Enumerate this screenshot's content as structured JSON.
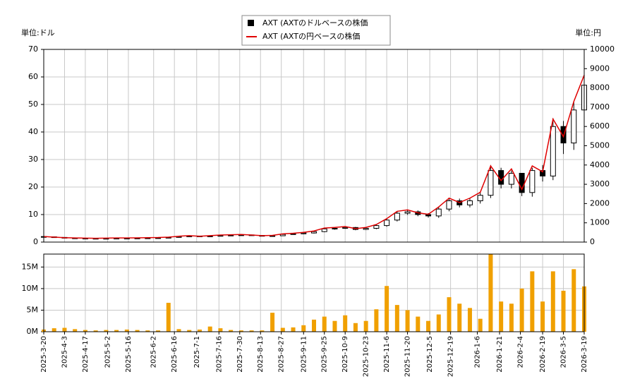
{
  "chart_data": [
    {
      "type": "candlestick",
      "y_label": "単位:ドル",
      "y2_label": "単位:円",
      "x": [
        "2025-3-20",
        "2025-3-27",
        "2025-4-3",
        "2025-4-10",
        "2025-4-17",
        "2025-4-24",
        "2025-5-1",
        "2025-5-8",
        "2025-5-15",
        "2025-5-22",
        "2025-5-29",
        "2025-6-5",
        "2025-6-12",
        "2025-6-19",
        "2025-6-26",
        "2025-7-3",
        "2025-7-10",
        "2025-7-17",
        "2025-7-24",
        "2025-7-31",
        "2025-8-7",
        "2025-8-14",
        "2025-8-21",
        "2025-8-28",
        "2025-9-4",
        "2025-9-11",
        "2025-9-18",
        "2025-9-25",
        "2025-10-2",
        "2025-10-9",
        "2025-10-16",
        "2025-10-23",
        "2025-10-30",
        "2025-11-6",
        "2025-11-13",
        "2025-11-20",
        "2025-11-27",
        "2025-12-4",
        "2025-12-11",
        "2025-12-18",
        "2025-12-25",
        "2026-1-1",
        "2026-1-8",
        "2026-1-15",
        "2026-1-22",
        "2026-1-29",
        "2026-2-5",
        "2026-2-12",
        "2026-2-19",
        "2026-2-26",
        "2026-3-5",
        "2026-3-12",
        "2026-3-19"
      ],
      "series": [
        {
          "name": "AXT (AXTのドルベースの株価",
          "color": "#000000",
          "open": [
            2.0,
            1.9,
            1.7,
            1.5,
            1.4,
            1.35,
            1.3,
            1.35,
            1.4,
            1.4,
            1.45,
            1.5,
            1.55,
            1.7,
            2.0,
            2.2,
            2.0,
            2.2,
            2.4,
            2.5,
            2.6,
            2.4,
            2.2,
            2.3,
            2.8,
            3.0,
            3.3,
            3.8,
            4.8,
            5.0,
            5.3,
            4.6,
            5.0,
            6.0,
            8.0,
            10.5,
            11,
            10,
            9.5,
            12,
            15,
            13.5,
            15,
            17,
            26,
            21,
            25,
            18,
            26,
            24,
            42,
            36,
            48
          ],
          "high": [
            2.1,
            2.0,
            1.8,
            1.6,
            1.5,
            1.45,
            1.45,
            1.5,
            1.5,
            1.55,
            1.6,
            1.65,
            1.8,
            2.1,
            2.4,
            2.3,
            2.3,
            2.6,
            2.6,
            2.8,
            2.7,
            2.5,
            2.4,
            3.0,
            3.2,
            3.5,
            4.0,
            5.1,
            5.3,
            5.6,
            5.5,
            5.3,
            6.4,
            8.6,
            11.2,
            11.8,
            11.5,
            10.5,
            12.8,
            16,
            15.8,
            16,
            18,
            28,
            27,
            26,
            25,
            27,
            28,
            45,
            44,
            51,
            63
          ],
          "low": [
            1.8,
            1.6,
            1.4,
            1.3,
            1.25,
            1.2,
            1.25,
            1.3,
            1.3,
            1.35,
            1.4,
            1.45,
            1.5,
            1.6,
            1.9,
            1.9,
            1.9,
            2.1,
            2.3,
            2.4,
            2.3,
            2.1,
            2.1,
            2.2,
            2.7,
            2.9,
            3.1,
            3.6,
            4.5,
            4.8,
            4.3,
            4.4,
            4.7,
            5.6,
            7.5,
            9.9,
            9.4,
            8.9,
            8.8,
            11.2,
            12.6,
            12.6,
            14,
            16,
            19.5,
            19.5,
            16.7,
            16.5,
            22,
            22.5,
            32,
            33.5,
            45
          ],
          "close": [
            1.9,
            1.7,
            1.5,
            1.4,
            1.35,
            1.3,
            1.35,
            1.4,
            1.4,
            1.45,
            1.5,
            1.55,
            1.7,
            2.0,
            2.2,
            2.0,
            2.2,
            2.4,
            2.5,
            2.6,
            2.4,
            2.2,
            2.3,
            2.8,
            3.0,
            3.3,
            3.8,
            4.8,
            5.0,
            5.3,
            4.6,
            5.0,
            6.0,
            8.0,
            10.5,
            11,
            10,
            9.5,
            12,
            15,
            13.5,
            15,
            17,
            26,
            21,
            25,
            18,
            26,
            24,
            42,
            36,
            48,
            57
          ]
        },
        {
          "name": "AXT (AXTの円ベースの株価",
          "color": "#e00000",
          "axis": "y2",
          "values": [
            289,
            258,
            228,
            213,
            205,
            198,
            205,
            213,
            213,
            220,
            228,
            236,
            258,
            304,
            334,
            304,
            334,
            365,
            380,
            395,
            365,
            334,
            350,
            426,
            456,
            502,
            578,
            730,
            760,
            806,
            699,
            760,
            912,
            1216,
            1596,
            1672,
            1520,
            1444,
            1824,
            2280,
            2052,
            2280,
            2584,
            3952,
            3192,
            3800,
            2736,
            3952,
            3648,
            6384,
            5472,
            7296,
            8664
          ]
        }
      ],
      "ylim": [
        0,
        70
      ],
      "yticks": [
        0,
        10,
        20,
        30,
        40,
        50,
        60,
        70
      ],
      "y2lim": [
        0,
        10000
      ],
      "y2ticks": [
        0,
        1000,
        2000,
        3000,
        4000,
        5000,
        6000,
        7000,
        8000,
        9000,
        10000
      ],
      "grid": true
    },
    {
      "type": "bar",
      "color": "#f0a000",
      "values": [
        500000,
        800000,
        900000,
        600000,
        400000,
        300000,
        400000,
        400000,
        500000,
        400000,
        300000,
        300000,
        6700000,
        600000,
        400000,
        500000,
        1200000,
        800000,
        400000,
        300000,
        300000,
        300000,
        4400000,
        900000,
        1000000,
        1500000,
        2800000,
        3500000,
        2500000,
        3800000,
        2000000,
        2500000,
        5200000,
        10600000,
        6200000,
        5000000,
        3500000,
        2500000,
        4000000,
        8000000,
        6500000,
        5500000,
        3000000,
        18000000,
        7000000,
        6500000,
        10000000,
        14000000,
        7000000,
        14000000,
        9500000,
        14500000,
        10500000
      ],
      "ylim": [
        0,
        18000000
      ],
      "yticks": [
        {
          "value": 0,
          "label": "0M"
        },
        {
          "value": 5000000,
          "label": "5M"
        },
        {
          "value": 10000000,
          "label": "10M"
        },
        {
          "value": 15000000,
          "label": "15M"
        }
      ],
      "xlim": [
        "2025-3-20",
        "2026-3-19"
      ],
      "xticks": [
        "2025-3-20",
        "2025-4-3",
        "2025-4-17",
        "2025-5-2",
        "2025-5-16",
        "2025-6-2",
        "2025-6-16",
        "2025-7-1",
        "2025-7-16",
        "2025-7-30",
        "2025-8-13",
        "2025-8-27",
        "2025-9-11",
        "2025-9-25",
        "2025-10-9",
        "2025-10-23",
        "2025-11-6",
        "2025-11-20",
        "2025-12-5",
        "2025-12-19",
        "2026-1-6",
        "2026-1-21",
        "2026-2-4",
        "2026-2-19",
        "2026-3-5",
        "2026-3-19"
      ],
      "grid": true
    }
  ]
}
